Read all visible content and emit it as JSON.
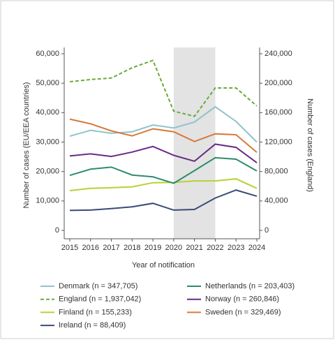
{
  "chart_data": {
    "type": "line",
    "x_label": "Year of notification",
    "y_label": "Number of cases (EU/EEA countries)",
    "y2_label": "Number of cases (England)",
    "categories": [
      "2015",
      "2016",
      "2017",
      "2018",
      "2019",
      "2020",
      "2021",
      "2022",
      "2023",
      "2024"
    ],
    "highlight": {
      "from": 5,
      "to": 7,
      "color": "#e3e3e3"
    },
    "ylim": [
      0,
      60000
    ],
    "yticks": [
      0,
      {
        "value": 10000,
        "label": "10,000"
      },
      {
        "value": 20000,
        "label": "20,000"
      },
      {
        "value": 30000,
        "label": "30,000"
      },
      {
        "value": 40000,
        "label": "40,000"
      },
      {
        "value": 50000,
        "label": "50,000"
      },
      {
        "value": 60000,
        "label": "60,000"
      }
    ],
    "y2lim": [
      0,
      240000
    ],
    "y2ticks": [
      0,
      {
        "value": 40000,
        "label": "40,000"
      },
      {
        "value": 80000,
        "label": "80,000"
      },
      {
        "value": 120000,
        "label": "120,000"
      },
      {
        "value": 160000,
        "label": "160,000"
      },
      {
        "value": 200000,
        "label": "200,000"
      },
      {
        "value": 240000,
        "label": "240,000"
      }
    ],
    "series": [
      {
        "name": "Denmark (n = 347,705)",
        "color": "#8fc3cc",
        "values": [
          32000,
          34000,
          33000,
          33500,
          35800,
          34800,
          36800,
          42000,
          37000,
          30000
        ]
      },
      {
        "name": "England (n = 1,937,042)",
        "color": "#6aaa3a",
        "dashed": true,
        "axis": "y2",
        "values": [
          202000,
          205000,
          207000,
          221000,
          231000,
          162000,
          155000,
          193500,
          193500,
          169000
        ]
      },
      {
        "name": "Finland (n = 155,233)",
        "color": "#b5d334",
        "values": [
          13500,
          14300,
          14500,
          14800,
          16200,
          16300,
          16800,
          16800,
          17500,
          14300
        ]
      },
      {
        "name": "Ireland (n = 88,409)",
        "color": "#3b4a78",
        "values": [
          6800,
          6900,
          7400,
          8000,
          9200,
          6900,
          7100,
          11000,
          13700,
          11600
        ]
      },
      {
        "name": "Netherlands (n = 203,403)",
        "color": "#2e8b6e",
        "values": [
          18700,
          20800,
          21500,
          18800,
          18200,
          16000,
          20300,
          24700,
          24200,
          20200
        ]
      },
      {
        "name": "Norway (n = 260,846)",
        "color": "#6a2a84",
        "values": [
          25300,
          26000,
          25100,
          26600,
          28500,
          25500,
          23500,
          29300,
          28200,
          23000
        ]
      },
      {
        "name": "Sweden (n = 329,469)",
        "color": "#d67a3a",
        "values": [
          37800,
          36200,
          33800,
          32100,
          34500,
          33500,
          30200,
          32800,
          32500,
          26500
        ]
      }
    ]
  }
}
